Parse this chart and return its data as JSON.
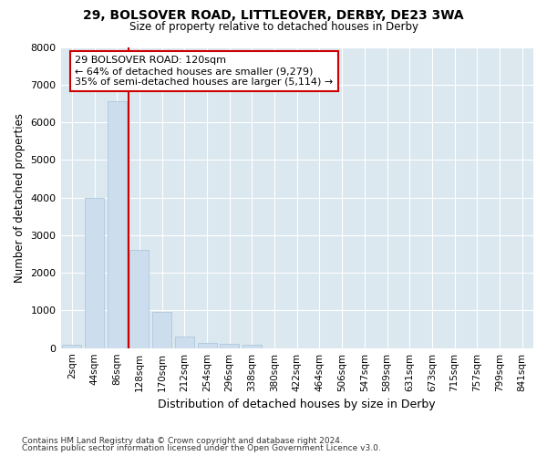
{
  "title1": "29, BOLSOVER ROAD, LITTLEOVER, DERBY, DE23 3WA",
  "title2": "Size of property relative to detached houses in Derby",
  "xlabel": "Distribution of detached houses by size in Derby",
  "ylabel": "Number of detached properties",
  "bar_color": "#ccdded",
  "bar_edge_color": "#aec8db",
  "background_color": "#dce8f0",
  "grid_color": "#ffffff",
  "vline_color": "#cc0000",
  "annotation_text": "29 BOLSOVER ROAD: 120sqm\n← 64% of detached houses are smaller (9,279)\n35% of semi-detached houses are larger (5,114) →",
  "annotation_box_color": "#ffffff",
  "annotation_box_edge": "#cc0000",
  "categories": [
    "2sqm",
    "44sqm",
    "86sqm",
    "128sqm",
    "170sqm",
    "212sqm",
    "254sqm",
    "296sqm",
    "338sqm",
    "380sqm",
    "422sqm",
    "464sqm",
    "506sqm",
    "547sqm",
    "589sqm",
    "631sqm",
    "673sqm",
    "715sqm",
    "757sqm",
    "799sqm",
    "841sqm"
  ],
  "values": [
    80,
    3980,
    6550,
    2620,
    960,
    305,
    130,
    120,
    90,
    0,
    0,
    0,
    0,
    0,
    0,
    0,
    0,
    0,
    0,
    0,
    0
  ],
  "footnote1": "Contains HM Land Registry data © Crown copyright and database right 2024.",
  "footnote2": "Contains public sector information licensed under the Open Government Licence v3.0.",
  "ylim": [
    0,
    8000
  ],
  "yticks": [
    0,
    1000,
    2000,
    3000,
    4000,
    5000,
    6000,
    7000,
    8000
  ],
  "vline_pos": 2.5
}
